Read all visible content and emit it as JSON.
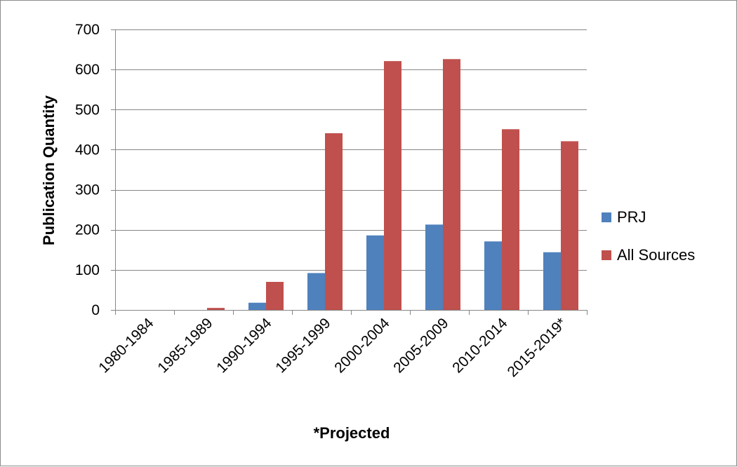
{
  "chart_data": {
    "type": "bar",
    "title": "",
    "xlabel": "*Projected",
    "ylabel": "Publication Quantity",
    "categories": [
      "1980-1984",
      "1985-1989",
      "1990-1994",
      "1995-1999",
      "2000-2004",
      "2005-2009",
      "2010-2014",
      "2015-2019*"
    ],
    "series": [
      {
        "name": "PRJ",
        "color": "#4f81bd",
        "values": [
          0,
          0,
          18,
          92,
          186,
          213,
          171,
          144
        ]
      },
      {
        "name": "All Sources",
        "color": "#c0504d",
        "values": [
          0,
          5,
          70,
          441,
          621,
          626,
          451,
          421
        ]
      }
    ],
    "ylim": [
      0,
      700
    ],
    "yticks": [
      0,
      100,
      200,
      300,
      400,
      500,
      600,
      700
    ],
    "grid": true,
    "legend_position": "right"
  }
}
